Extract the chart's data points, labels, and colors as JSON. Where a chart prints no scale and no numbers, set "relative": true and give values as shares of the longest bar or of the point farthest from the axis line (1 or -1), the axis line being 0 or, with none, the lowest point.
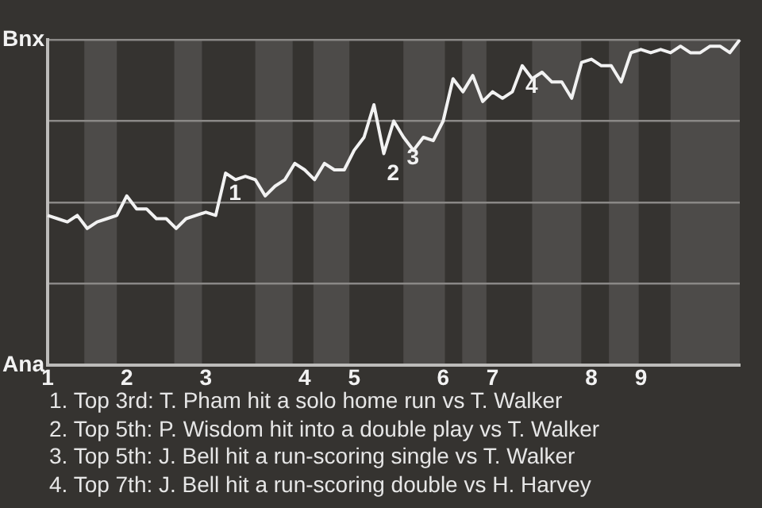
{
  "chart_data": {
    "type": "line",
    "relative": true,
    "grid": "y",
    "legend": false,
    "marker": "none",
    "line_style": "solid",
    "categories": [
      "1",
      null,
      null,
      null,
      null,
      null,
      null,
      null,
      "2",
      null,
      null,
      null,
      null,
      null,
      null,
      null,
      "3",
      null,
      null,
      null,
      null,
      null,
      null,
      null,
      null,
      null,
      "4",
      null,
      null,
      null,
      null,
      "5",
      null,
      null,
      null,
      null,
      null,
      null,
      null,
      null,
      "6",
      null,
      null,
      null,
      null,
      "7",
      null,
      null,
      null,
      null,
      null,
      null,
      null,
      null,
      null,
      "8",
      null,
      null,
      null,
      null,
      "9",
      null,
      null,
      null,
      null,
      null,
      null,
      null,
      null,
      null,
      null
    ],
    "series": [
      {
        "color": "#f2f2f2",
        "values": [
          0.46,
          0.45,
          0.44,
          0.46,
          0.42,
          0.44,
          0.45,
          0.46,
          0.52,
          0.48,
          0.48,
          0.45,
          0.45,
          0.42,
          0.45,
          0.46,
          0.47,
          0.46,
          0.59,
          0.57,
          0.58,
          0.57,
          0.52,
          0.55,
          0.57,
          0.62,
          0.6,
          0.57,
          0.62,
          0.6,
          0.6,
          0.66,
          0.7,
          0.8,
          0.65,
          0.75,
          0.7,
          0.66,
          0.7,
          0.69,
          0.75,
          0.88,
          0.84,
          0.89,
          0.81,
          0.84,
          0.82,
          0.84,
          0.92,
          0.88,
          0.9,
          0.87,
          0.87,
          0.82,
          0.93,
          0.94,
          0.92,
          0.92,
          0.87,
          0.96,
          0.97,
          0.96,
          0.97,
          0.96,
          0.98,
          0.96,
          0.96,
          0.98,
          0.98,
          0.96,
          1
        ]
      }
    ],
    "annotations": [
      "Ana",
      "Bnx",
      {
        "text": "1",
        "y": 0.59
      },
      {
        "text": "2",
        "y": 0.65
      },
      {
        "text": "3",
        "y": 0.7
      },
      {
        "text": "4",
        "y": 0.92
      },
      "1. Top 3rd: T. Pham hit a solo home run vs T. Walker",
      "2. Top 5th: P. Wisdom hit into a double play vs T. Walker",
      "3. Top 5th: J. Bell hit a run-scoring single vs T. Walker",
      "4. Top 7th: J. Bell hit a run-scoring double vs H. Harvey"
    ]
  }
}
